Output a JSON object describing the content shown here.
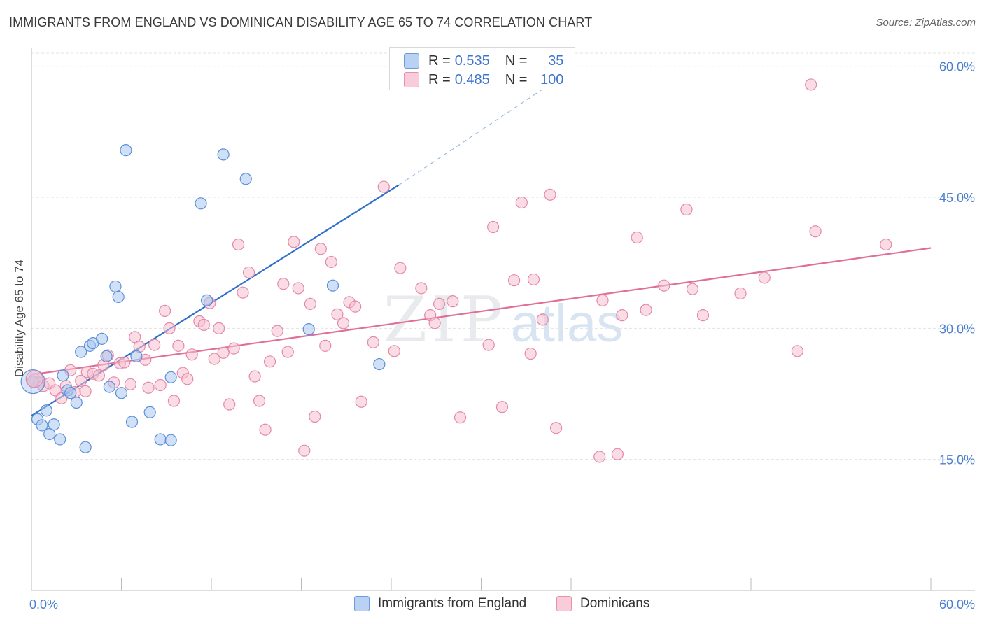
{
  "title": "IMMIGRANTS FROM ENGLAND VS DOMINICAN DISABILITY AGE 65 TO 74 CORRELATION CHART",
  "source": "Source: ZipAtlas.com",
  "watermark": {
    "zip": "ZIP",
    "atlas": "atlas"
  },
  "colors": {
    "blue_fill": "#a9c6ef",
    "blue_stroke": "#5b8fd8",
    "blue_line": "#2f6fcd",
    "pink_fill": "#f6bfd0",
    "pink_stroke": "#e588a8",
    "pink_line": "#e06f98",
    "tick_text": "#4a7fd0",
    "grid": "#e3e3e3"
  },
  "legend_stats": [
    {
      "r_label": "R =",
      "r_value": "0.535",
      "n_label": "N =",
      "n_value": "35",
      "series": "Immigrants from England"
    },
    {
      "r_label": "R =",
      "r_value": "0.485",
      "n_label": "N =",
      "n_value": "100",
      "series": "Dominicans"
    }
  ],
  "chart_data": {
    "type": "scatter",
    "title": "IMMIGRANTS FROM ENGLAND VS DOMINICAN DISABILITY AGE 65 TO 74 CORRELATION CHART",
    "xlabel": "",
    "ylabel": "Disability Age 65 to 74",
    "xlim": [
      0,
      60
    ],
    "ylim": [
      0,
      61.5
    ],
    "x_tick_labels": [
      "0.0%",
      "60.0%"
    ],
    "y_ticks": [
      15,
      30,
      45,
      60
    ],
    "y_tick_labels": [
      "15.0%",
      "30.0%",
      "45.0%",
      "60.0%"
    ],
    "grid": true,
    "legend_position": "bottom-center",
    "series": [
      {
        "name": "Immigrants from England",
        "color": "#a9c6ef",
        "points": [
          [
            0.1,
            23.9
          ],
          [
            0.4,
            19.6
          ],
          [
            0.7,
            18.9
          ],
          [
            1.0,
            20.6
          ],
          [
            1.2,
            17.9
          ],
          [
            1.5,
            19.0
          ],
          [
            1.9,
            17.3
          ],
          [
            2.1,
            24.6
          ],
          [
            2.4,
            22.9
          ],
          [
            2.6,
            22.6
          ],
          [
            3.0,
            21.5
          ],
          [
            3.3,
            27.3
          ],
          [
            3.6,
            16.4
          ],
          [
            3.9,
            28.0
          ],
          [
            4.1,
            28.3
          ],
          [
            4.7,
            28.8
          ],
          [
            5.0,
            26.8
          ],
          [
            5.2,
            23.3
          ],
          [
            5.6,
            34.8
          ],
          [
            5.8,
            33.6
          ],
          [
            6.0,
            22.6
          ],
          [
            6.3,
            50.4
          ],
          [
            6.7,
            19.3
          ],
          [
            7.0,
            26.8
          ],
          [
            7.9,
            20.4
          ],
          [
            8.6,
            17.3
          ],
          [
            9.3,
            17.2
          ],
          [
            9.3,
            24.4
          ],
          [
            11.3,
            44.3
          ],
          [
            11.7,
            33.2
          ],
          [
            12.8,
            49.9
          ],
          [
            14.3,
            47.1
          ],
          [
            18.5,
            29.9
          ],
          [
            20.1,
            34.9
          ],
          [
            23.2,
            25.9
          ]
        ],
        "trend": {
          "x": [
            0,
            24.5
          ],
          "y": [
            20.0,
            46.4
          ],
          "dashed_extension_x": [
            24.5,
            36.4
          ],
          "dashed_extension_y": [
            46.4,
            60.0
          ]
        }
      },
      {
        "name": "Dominicans",
        "color": "#f6bfd0",
        "points": [
          [
            0.2,
            24.2
          ],
          [
            0.5,
            23.8
          ],
          [
            0.8,
            23.4
          ],
          [
            1.2,
            23.7
          ],
          [
            1.6,
            22.9
          ],
          [
            2.0,
            22.0
          ],
          [
            2.3,
            23.4
          ],
          [
            2.6,
            25.2
          ],
          [
            2.9,
            22.7
          ],
          [
            3.3,
            24.0
          ],
          [
            3.6,
            22.8
          ],
          [
            3.7,
            25.0
          ],
          [
            4.1,
            24.8
          ],
          [
            4.5,
            24.6
          ],
          [
            4.8,
            25.8
          ],
          [
            5.1,
            26.9
          ],
          [
            5.5,
            23.8
          ],
          [
            5.9,
            26.0
          ],
          [
            6.2,
            26.1
          ],
          [
            6.6,
            23.6
          ],
          [
            6.9,
            29.0
          ],
          [
            7.2,
            27.9
          ],
          [
            7.6,
            26.4
          ],
          [
            7.8,
            23.2
          ],
          [
            8.2,
            28.1
          ],
          [
            8.6,
            23.5
          ],
          [
            8.9,
            32.0
          ],
          [
            9.2,
            30.0
          ],
          [
            9.5,
            21.7
          ],
          [
            9.8,
            28.0
          ],
          [
            10.1,
            24.9
          ],
          [
            10.4,
            24.2
          ],
          [
            10.7,
            27.0
          ],
          [
            11.2,
            30.8
          ],
          [
            11.5,
            30.4
          ],
          [
            11.9,
            32.9
          ],
          [
            12.2,
            26.5
          ],
          [
            12.5,
            30.0
          ],
          [
            12.8,
            27.2
          ],
          [
            13.2,
            21.3
          ],
          [
            13.5,
            27.7
          ],
          [
            13.8,
            39.6
          ],
          [
            14.1,
            34.1
          ],
          [
            14.5,
            36.4
          ],
          [
            14.9,
            24.5
          ],
          [
            15.2,
            21.7
          ],
          [
            15.6,
            18.4
          ],
          [
            15.9,
            26.2
          ],
          [
            16.4,
            29.7
          ],
          [
            16.8,
            35.1
          ],
          [
            17.1,
            27.3
          ],
          [
            17.5,
            39.9
          ],
          [
            17.8,
            34.6
          ],
          [
            18.2,
            16.0
          ],
          [
            18.6,
            32.8
          ],
          [
            18.9,
            19.9
          ],
          [
            19.3,
            39.1
          ],
          [
            19.6,
            28.0
          ],
          [
            20.0,
            37.6
          ],
          [
            20.4,
            31.6
          ],
          [
            20.8,
            30.6
          ],
          [
            21.2,
            33.0
          ],
          [
            21.6,
            32.5
          ],
          [
            22.0,
            21.6
          ],
          [
            22.8,
            28.4
          ],
          [
            23.5,
            46.2
          ],
          [
            24.2,
            27.4
          ],
          [
            24.6,
            36.9
          ],
          [
            26.0,
            34.6
          ],
          [
            26.6,
            31.5
          ],
          [
            26.9,
            30.6
          ],
          [
            27.2,
            32.8
          ],
          [
            28.1,
            33.1
          ],
          [
            28.6,
            19.8
          ],
          [
            30.5,
            28.1
          ],
          [
            30.8,
            41.6
          ],
          [
            31.4,
            21.0
          ],
          [
            32.2,
            35.5
          ],
          [
            32.7,
            44.4
          ],
          [
            33.3,
            27.1
          ],
          [
            33.5,
            35.6
          ],
          [
            34.1,
            31.0
          ],
          [
            34.6,
            45.3
          ],
          [
            35.0,
            18.6
          ],
          [
            37.9,
            15.3
          ],
          [
            38.1,
            33.2
          ],
          [
            39.1,
            15.6
          ],
          [
            39.4,
            31.5
          ],
          [
            40.4,
            40.4
          ],
          [
            41.0,
            32.1
          ],
          [
            42.2,
            34.9
          ],
          [
            43.7,
            43.6
          ],
          [
            44.1,
            34.5
          ],
          [
            44.8,
            31.5
          ],
          [
            47.3,
            34.0
          ],
          [
            48.9,
            35.8
          ],
          [
            51.1,
            27.4
          ],
          [
            52.0,
            57.9
          ],
          [
            52.3,
            41.1
          ],
          [
            57.0,
            39.6
          ]
        ],
        "trend": {
          "x": [
            0,
            60
          ],
          "y": [
            24.7,
            39.2
          ]
        }
      }
    ]
  }
}
